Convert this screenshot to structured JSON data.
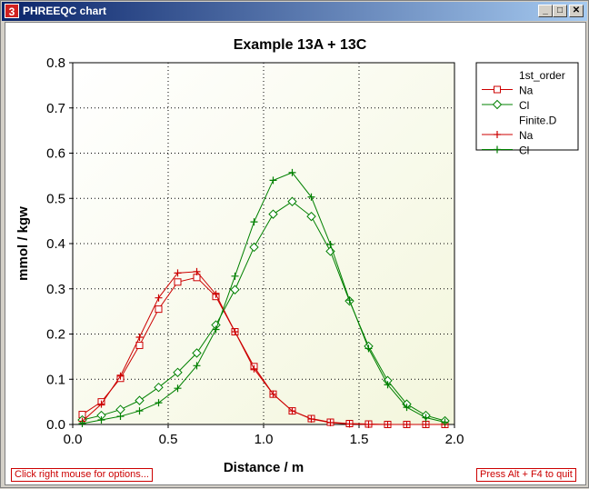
{
  "window": {
    "title": "PHREEQC chart",
    "icon_glyph": "3",
    "minimize_icon": "minimize-icon",
    "maximize_icon": "maximize-icon",
    "close_icon": "close-icon",
    "footer_left": "Click right mouse for options...",
    "footer_right": "Press Alt + F4 to quit"
  },
  "chart_data": {
    "type": "line",
    "title": "Example 13A + 13C",
    "xlabel": "Distance / m",
    "ylabel": "mmol / kgw",
    "xlim": [
      0,
      2
    ],
    "ylim": [
      0,
      0.8
    ],
    "xticks": [
      "0.0",
      "0.5",
      "1.0",
      "1.5",
      "2.0"
    ],
    "yticks": [
      "0.0",
      "0.1",
      "0.2",
      "0.3",
      "0.4",
      "0.5",
      "0.6",
      "0.7",
      "0.8"
    ],
    "grid": true,
    "legend_position": "top-right",
    "legend_groups": [
      "1st_order",
      "Finite.D"
    ],
    "x": [
      0.05,
      0.15,
      0.25,
      0.35,
      0.45,
      0.55,
      0.65,
      0.75,
      0.85,
      0.95,
      1.05,
      1.15,
      1.25,
      1.35,
      1.45,
      1.55,
      1.65,
      1.75,
      1.85,
      1.95
    ],
    "series": [
      {
        "name": "Na",
        "group": "1st_order",
        "color": "#cc0000",
        "marker": "square",
        "values": [
          0.022,
          0.05,
          0.102,
          0.175,
          0.255,
          0.315,
          0.325,
          0.283,
          0.205,
          0.128,
          0.067,
          0.03,
          0.013,
          0.005,
          0.002,
          0.001,
          0.0,
          0.0,
          0.0,
          0.0
        ]
      },
      {
        "name": "Cl",
        "group": "1st_order",
        "color": "#008000",
        "marker": "diamond",
        "values": [
          0.01,
          0.02,
          0.033,
          0.053,
          0.082,
          0.115,
          0.158,
          0.22,
          0.298,
          0.392,
          0.465,
          0.493,
          0.46,
          0.383,
          0.273,
          0.173,
          0.097,
          0.045,
          0.02,
          0.008
        ]
      },
      {
        "name": "Na",
        "group": "Finite.D",
        "color": "#cc0000",
        "marker": "plus",
        "values": [
          0.007,
          0.045,
          0.107,
          0.193,
          0.28,
          0.335,
          0.338,
          0.288,
          0.205,
          0.123,
          0.067,
          0.03,
          0.012,
          0.004,
          0.001,
          0.0,
          0.0,
          0.0,
          0.0,
          0.0
        ]
      },
      {
        "name": "Cl",
        "group": "Finite.D",
        "color": "#008000",
        "marker": "plus",
        "values": [
          0.002,
          0.01,
          0.018,
          0.03,
          0.048,
          0.08,
          0.13,
          0.21,
          0.328,
          0.448,
          0.54,
          0.557,
          0.503,
          0.398,
          0.275,
          0.168,
          0.088,
          0.038,
          0.015,
          0.005
        ]
      }
    ]
  }
}
